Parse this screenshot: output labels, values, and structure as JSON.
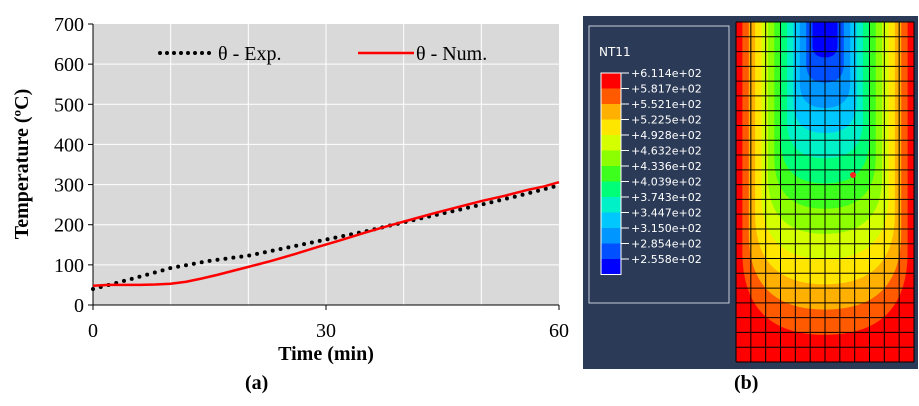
{
  "chart_data": [
    {
      "type": "line",
      "panel_label": "(a)",
      "xlabel": "Time (min)",
      "ylabel": "Temperature (ºC)",
      "xlim": [
        0,
        60
      ],
      "ylim": [
        0,
        700
      ],
      "xticks": [
        "0",
        "30",
        "60"
      ],
      "yticks": [
        "0",
        "100",
        "200",
        "300",
        "400",
        "500",
        "600",
        "700"
      ],
      "grid": true,
      "legend_position": "top",
      "series": [
        {
          "name": "θ - Exp.",
          "style": "dotted",
          "color": "#000000",
          "x": [
            0,
            5,
            10,
            15,
            20,
            25,
            30,
            35,
            40,
            45,
            50,
            55,
            60
          ],
          "y": [
            40,
            65,
            92,
            110,
            123,
            143,
            163,
            183,
            206,
            228,
            250,
            273,
            298
          ]
        },
        {
          "name": "θ - Num.",
          "style": "solid",
          "color": "#ff0000",
          "x": [
            0,
            2,
            4,
            6,
            8,
            10,
            12,
            14,
            16,
            18,
            20,
            23,
            26,
            29,
            32,
            35,
            38,
            41,
            44,
            47,
            50,
            53,
            56,
            58,
            60
          ],
          "y": [
            48,
            50,
            50,
            50,
            51,
            53,
            58,
            66,
            75,
            85,
            95,
            110,
            127,
            145,
            162,
            180,
            197,
            213,
            229,
            244,
            259,
            272,
            287,
            295,
            306
          ]
        }
      ]
    },
    {
      "type": "heatmap",
      "panel_label": "(b)",
      "legend_title": "NT11",
      "legend_values": [
        "+6.114e+02",
        "+5.817e+02",
        "+5.521e+02",
        "+5.225e+02",
        "+4.928e+02",
        "+4.632e+02",
        "+4.336e+02",
        "+4.039e+02",
        "+3.743e+02",
        "+3.447e+02",
        "+3.150e+02",
        "+2.854e+02",
        "+2.558e+02"
      ],
      "legend_colors": [
        "#ff0000",
        "#ff5a00",
        "#ffb000",
        "#ffe600",
        "#d4ff00",
        "#8cff00",
        "#3cff1e",
        "#00ff78",
        "#00f0c8",
        "#00c8ff",
        "#0096ff",
        "#0050ff",
        "#0000ff"
      ],
      "background_color": "#2b3a56",
      "mesh_columns": 12,
      "mesh_rows": 23
    }
  ]
}
